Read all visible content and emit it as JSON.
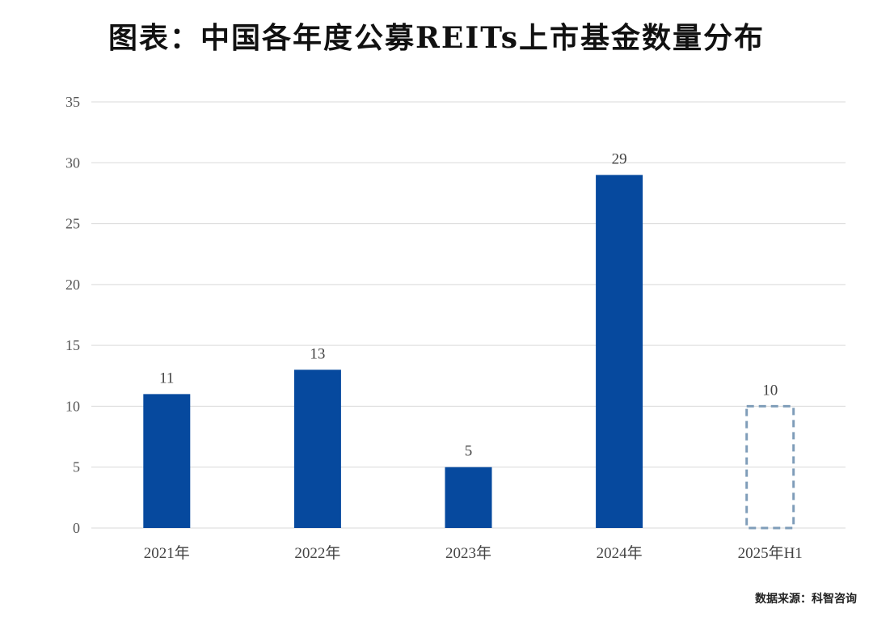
{
  "title": "图表：中国各年度公募REITs上市基金数量分布",
  "source": "数据来源：科智咨询",
  "colors": {
    "bar": "#06499E",
    "projected_border": "#7F9DB9",
    "grid": "#D9D9D9"
  },
  "chart_data": {
    "type": "bar",
    "title": "图表：中国各年度公募REITs上市基金数量分布",
    "categories": [
      "2021年",
      "2022年",
      "2023年",
      "2024年",
      "2025年H1"
    ],
    "values": [
      11,
      13,
      5,
      29,
      10
    ],
    "projected": [
      false,
      false,
      false,
      false,
      true
    ],
    "xlabel": "",
    "ylabel": "",
    "ylim": [
      0,
      35
    ],
    "yticks": [
      0,
      5,
      10,
      15,
      20,
      25,
      30,
      35
    ],
    "grid": true,
    "legend": "none"
  }
}
